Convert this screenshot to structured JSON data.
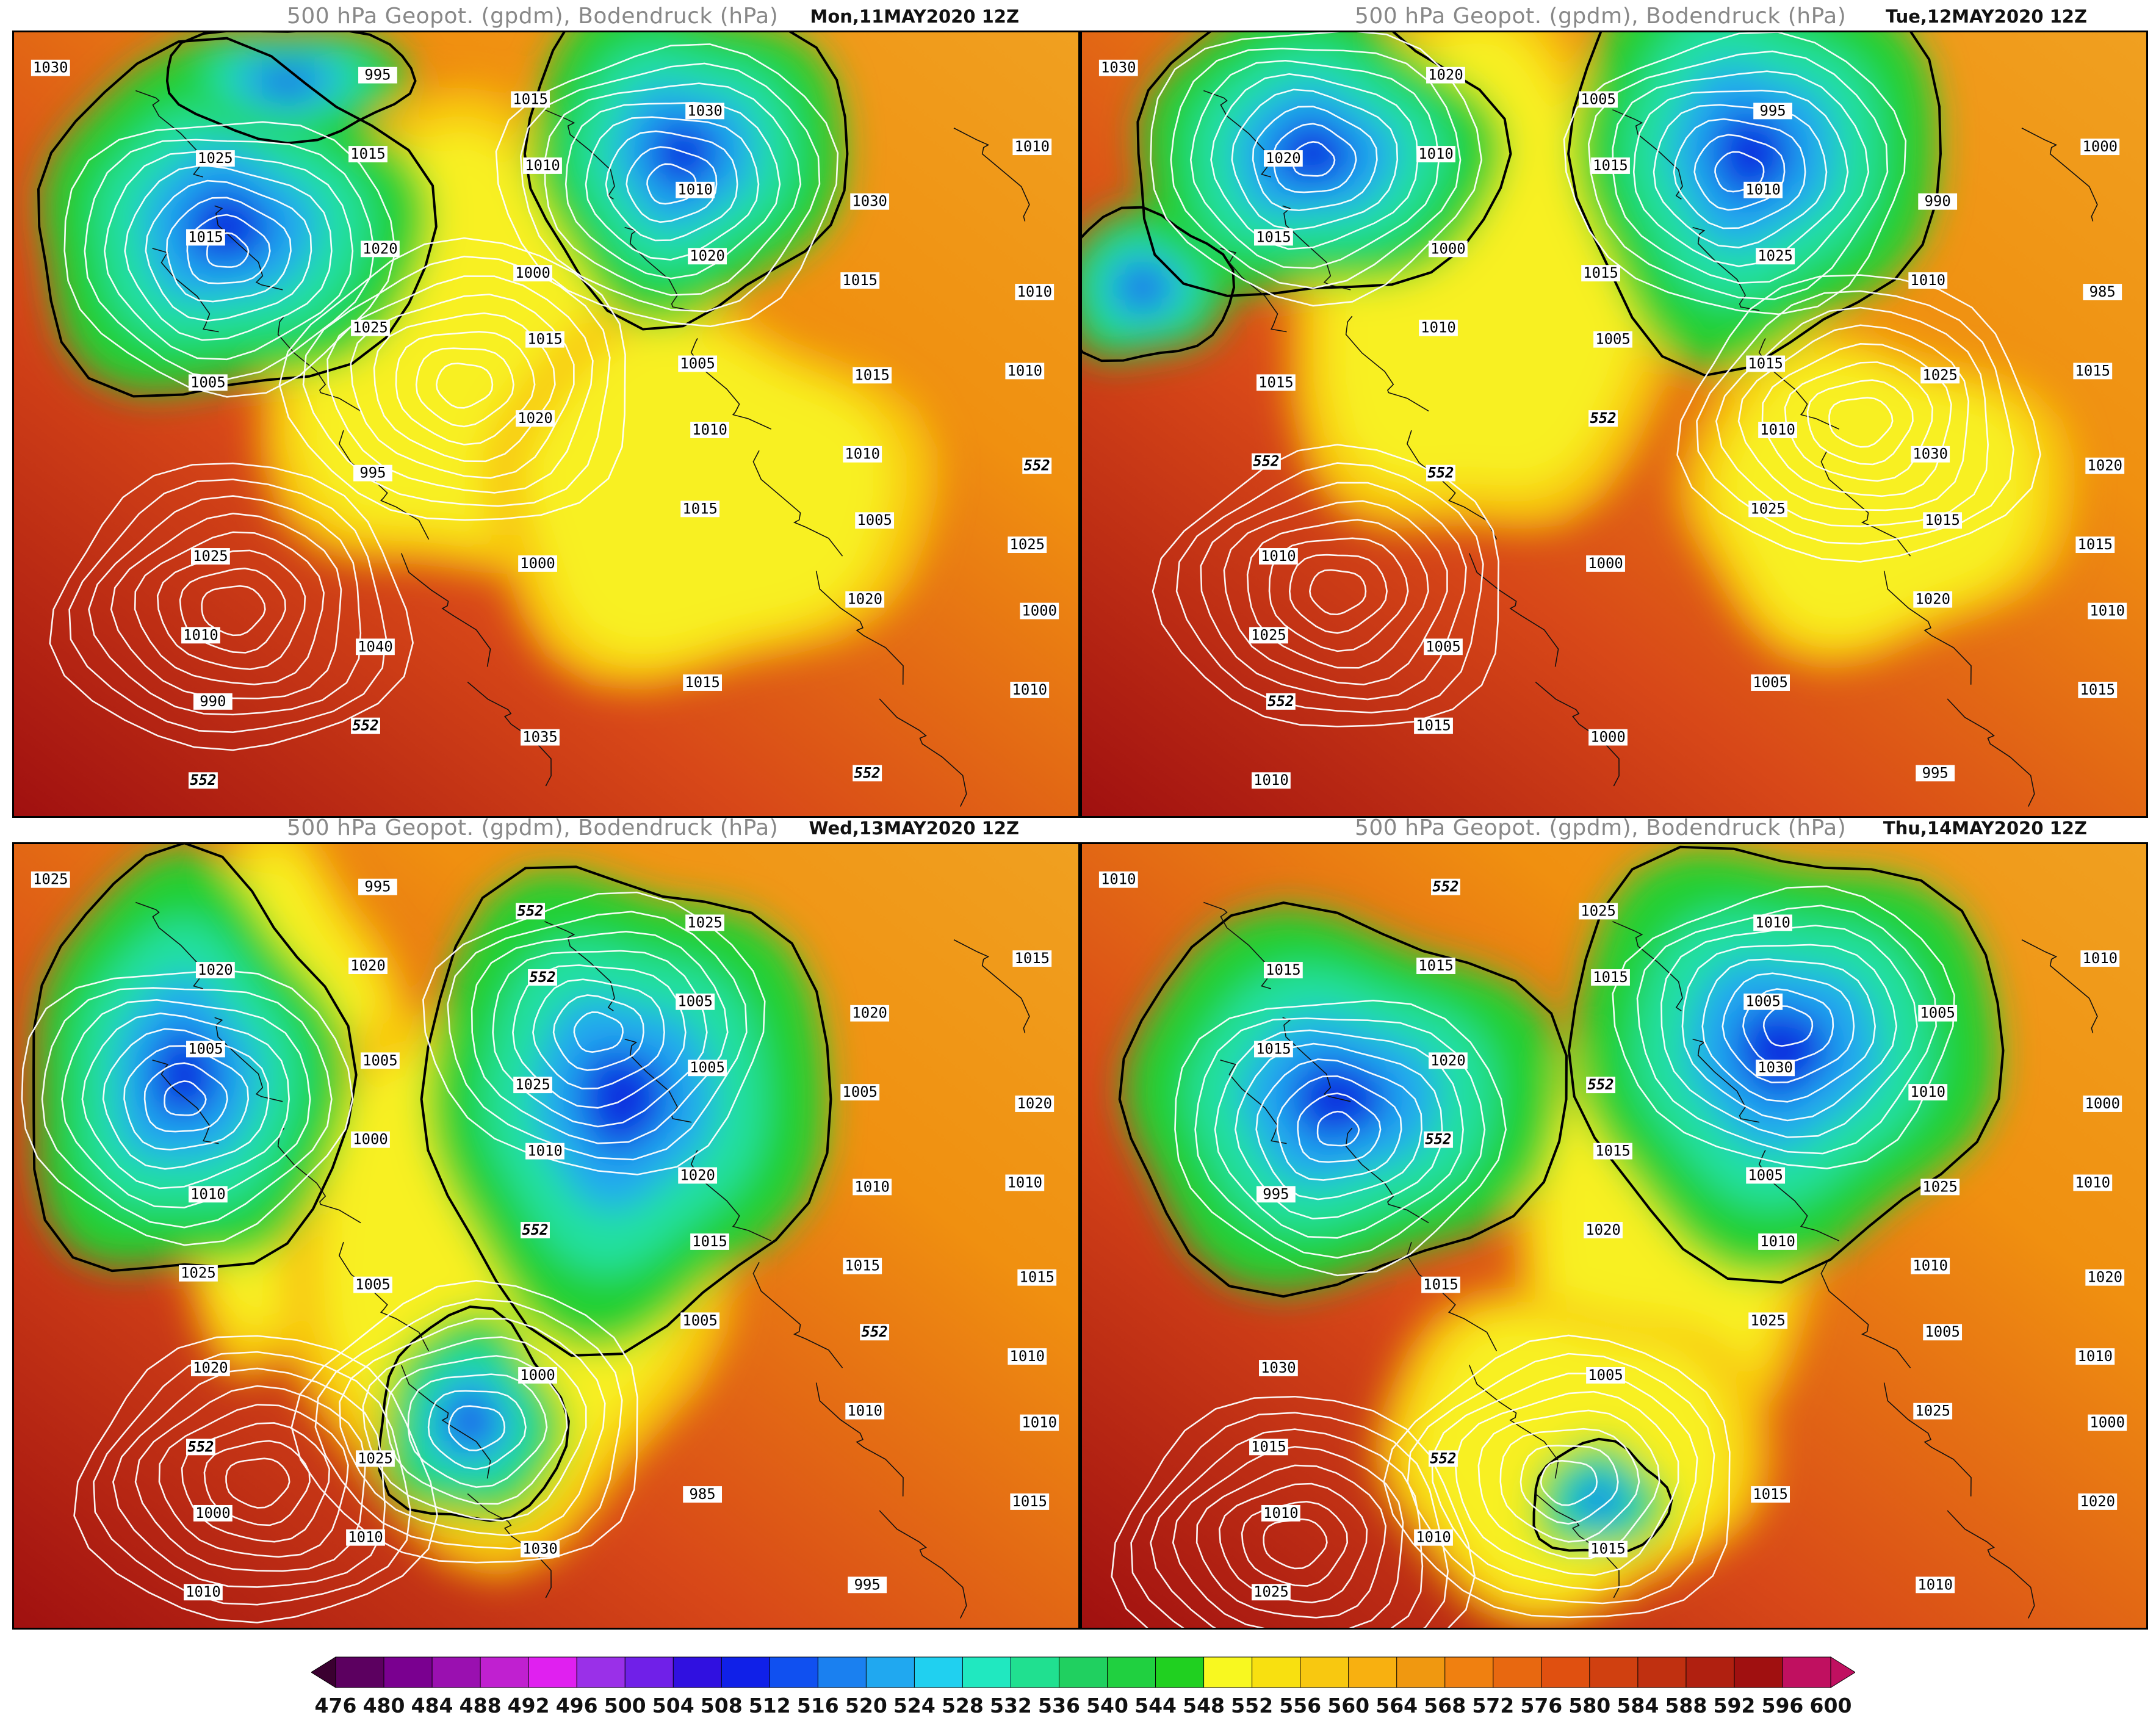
{
  "panels": [
    {
      "id": "mon",
      "title": "500 hPa Geopot. (gpdm), Bodendruck (hPa)",
      "date": "Mon,11MAY2020 12Z",
      "isobar_labels": [
        "1030",
        "1025",
        "1020",
        "1015",
        "1010",
        "1005",
        "1000",
        "990",
        "995",
        "1010",
        "1020",
        "1015",
        "552",
        "1025",
        "1040",
        "1035",
        "1030",
        "1030",
        "1010",
        "1005",
        "995",
        "1000",
        "1015",
        "552",
        "1010",
        "1015",
        "1025",
        "1020",
        "1015",
        "1020",
        "1010",
        "552",
        "1015",
        "1000",
        "1005",
        "1010",
        "1025",
        "1010",
        "552",
        "1015",
        "1010",
        "1015",
        "1010"
      ]
    },
    {
      "id": "tue",
      "title": "500 hPa Geopot. (gpdm), Bodendruck (hPa)",
      "date": "Tue,12MAY2020 12Z",
      "isobar_labels": [
        "1030",
        "1020",
        "1000",
        "1005",
        "1010",
        "1015",
        "1010",
        "552",
        "1020",
        "1015",
        "1025",
        "1025",
        "1020",
        "1010",
        "1005",
        "1000",
        "995",
        "990",
        "985",
        "1015",
        "552",
        "1000",
        "1005",
        "995",
        "1000",
        "1015",
        "1010",
        "552",
        "1025",
        "1020",
        "1015",
        "1010",
        "1010",
        "1015",
        "1015",
        "1030",
        "1015",
        "1025",
        "1015",
        "1005",
        "1010",
        "1010",
        "1015",
        "552"
      ]
    },
    {
      "id": "wed",
      "title": "500 hPa Geopot. (gpdm), Bodendruck (hPa)",
      "date": "Wed,13MAY2020 12Z",
      "isobar_labels": [
        "1025",
        "1020",
        "1005",
        "1010",
        "1015",
        "552",
        "1010",
        "1000",
        "995",
        "552",
        "1005",
        "1010",
        "1015",
        "1020",
        "1025",
        "1030",
        "1025",
        "1020",
        "1020",
        "1010",
        "1005",
        "1000",
        "985",
        "995",
        "1015",
        "1005",
        "1000",
        "552",
        "1005",
        "1010",
        "1015",
        "1010",
        "1020",
        "1025",
        "1020",
        "1015",
        "1010",
        "552",
        "1010",
        "552",
        "1005",
        "1005",
        "1010",
        "1025"
      ]
    },
    {
      "id": "thu",
      "title": "500 hPa Geopot. (gpdm), Bodendruck (hPa)",
      "date": "Thu,14MAY2020 12Z",
      "isobar_labels": [
        "1010",
        "1015",
        "1020",
        "1015",
        "1010",
        "1005",
        "1000",
        "1010",
        "552",
        "1015",
        "1030",
        "1025",
        "1020",
        "1030",
        "552",
        "1015",
        "1010",
        "1005",
        "1000",
        "995",
        "1015",
        "1005",
        "1015",
        "1010",
        "1010",
        "1015",
        "552",
        "1020",
        "1025",
        "1025",
        "1020",
        "1025",
        "1015",
        "552",
        "1005",
        "1010",
        "1010",
        "1015",
        "1010",
        "1025",
        "1005",
        "1010",
        "1010"
      ]
    }
  ],
  "colorbar": {
    "labels": [
      "476",
      "480",
      "484",
      "488",
      "492",
      "496",
      "500",
      "504",
      "508",
      "512",
      "516",
      "520",
      "524",
      "528",
      "532",
      "536",
      "540",
      "544",
      "548",
      "552",
      "556",
      "560",
      "564",
      "568",
      "572",
      "576",
      "580",
      "584",
      "588",
      "592",
      "596",
      "600"
    ],
    "colors": [
      "#3a0030",
      "#5c0060",
      "#7a0090",
      "#9a10b0",
      "#c020d0",
      "#e020f0",
      "#9a30e8",
      "#7020e8",
      "#3010e0",
      "#1020e8",
      "#1050f0",
      "#1a80f0",
      "#20a8f0",
      "#20d0f0",
      "#20e8c0",
      "#20e090",
      "#20d060",
      "#20d040",
      "#20d020",
      "#f8f820",
      "#f8e010",
      "#f8c810",
      "#f8b010",
      "#f09810",
      "#f08010",
      "#e86810",
      "#e05010",
      "#d04010",
      "#c03010",
      "#b02010",
      "#a01010",
      "#c01060"
    ]
  }
}
